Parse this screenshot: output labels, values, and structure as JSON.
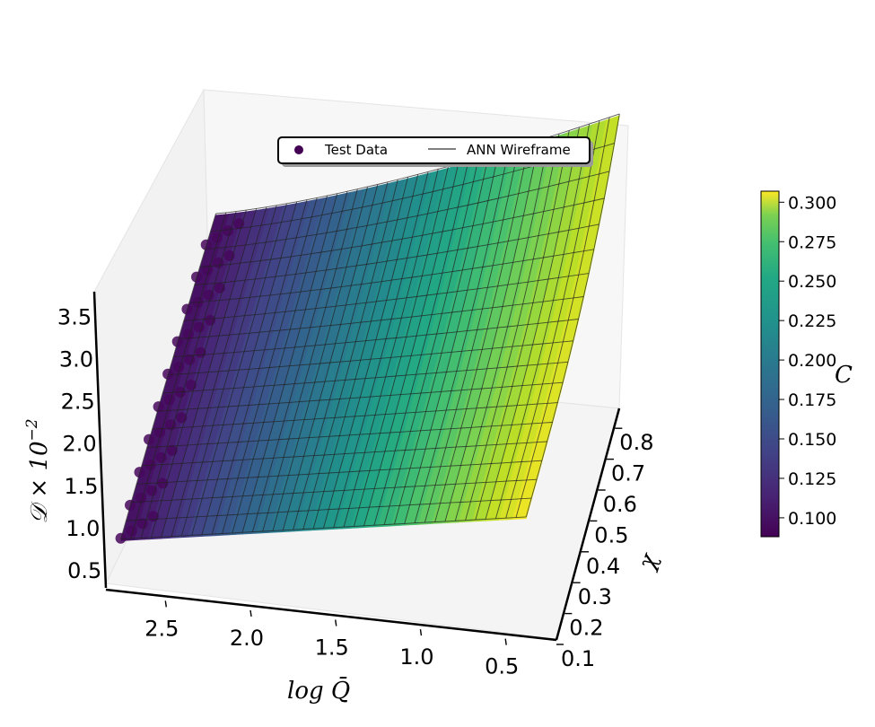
{
  "chart_data": {
    "type": "surface3d",
    "title": "",
    "legend": {
      "placement": "top-center",
      "entries": [
        {
          "label": "Test Data",
          "marker": "circle",
          "color": "#440154"
        },
        {
          "label": "ANN Wireframe",
          "marker": "line",
          "color": "#555555"
        }
      ]
    },
    "axes": {
      "x": {
        "label": "log Q̄",
        "ticks": [
          "2.5",
          "2.0",
          "1.5",
          "1.0",
          "0.5"
        ],
        "range": [
          0.2,
          2.85
        ]
      },
      "y": {
        "label": "χ",
        "ticks": [
          "0.1",
          "0.2",
          "0.3",
          "0.4",
          "0.5",
          "0.6",
          "0.7",
          "0.8"
        ],
        "range": [
          0.1,
          0.85
        ]
      },
      "z": {
        "label": "𝒟 × 10",
        "label_exponent": "−2",
        "ticks": [
          "0.5",
          "1.0",
          "1.5",
          "2.0",
          "2.5",
          "3.0",
          "3.5"
        ],
        "range": [
          0.3,
          3.8
        ]
      }
    },
    "colorbar": {
      "label": "C",
      "colormap": "viridis",
      "range": [
        0.088,
        0.307
      ],
      "ticks": [
        "0.100",
        "0.125",
        "0.150",
        "0.175",
        "0.200",
        "0.225",
        "0.250",
        "0.275",
        "0.300"
      ]
    },
    "surface_corners": [
      {
        "log_Q": 2.75,
        "chi": 0.1,
        "D": 0.9,
        "C": 0.095
      },
      {
        "log_Q": 0.35,
        "chi": 0.1,
        "D": 1.7,
        "C": 0.305
      },
      {
        "log_Q": 2.75,
        "chi": 0.8,
        "D": 2.4,
        "C": 0.095
      },
      {
        "log_Q": 0.35,
        "chi": 0.8,
        "D": 3.3,
        "C": 0.29
      }
    ],
    "grid": true
  }
}
